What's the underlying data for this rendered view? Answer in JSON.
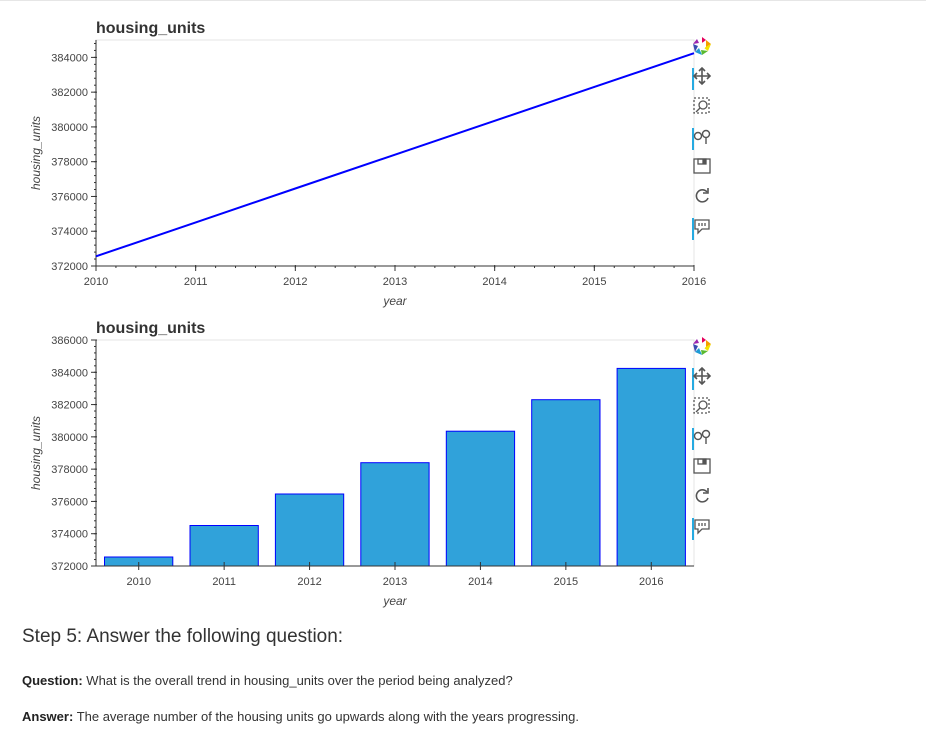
{
  "chart_data": [
    {
      "type": "line",
      "title": "housing_units",
      "xlabel": "year",
      "ylabel": "housing_units",
      "x": [
        2010,
        2011,
        2012,
        2013,
        2014,
        2015,
        2016
      ],
      "series": [
        {
          "values": [
            372560,
            374510,
            376460,
            378400,
            380350,
            382300,
            384240
          ]
        }
      ],
      "xlim": [
        2010,
        2016
      ],
      "ylim": [
        372000,
        385000
      ],
      "yticks": [
        372000,
        374000,
        376000,
        378000,
        380000,
        382000,
        384000
      ],
      "line_color": "#0000ff",
      "grid": false
    },
    {
      "type": "bar",
      "title": "housing_units",
      "xlabel": "year",
      "ylabel": "housing_units",
      "categories": [
        "2010",
        "2011",
        "2012",
        "2013",
        "2014",
        "2015",
        "2016"
      ],
      "values": [
        372560,
        374510,
        376460,
        378400,
        380350,
        382300,
        384240
      ],
      "ylim": [
        372000,
        386000
      ],
      "yticks": [
        372000,
        374000,
        376000,
        378000,
        380000,
        382000,
        384000,
        386000
      ],
      "bar_color": "#30a2da",
      "bar_edge_color": "#0000ff",
      "grid": false
    }
  ],
  "toolbar": {
    "tools": [
      "bokeh-logo-icon",
      "pan-icon",
      "box-zoom-icon",
      "wheel-zoom-icon",
      "save-icon",
      "reset-icon",
      "hover-icon"
    ]
  },
  "step": {
    "heading": "Step 5: Answer the following question:",
    "question_label": "Question:",
    "question_text": "What is the overall trend in housing_units over the period being analyzed?",
    "answer_label": "Answer:",
    "answer_text": "The average number of the housing units go upwards along with the years progressing."
  }
}
